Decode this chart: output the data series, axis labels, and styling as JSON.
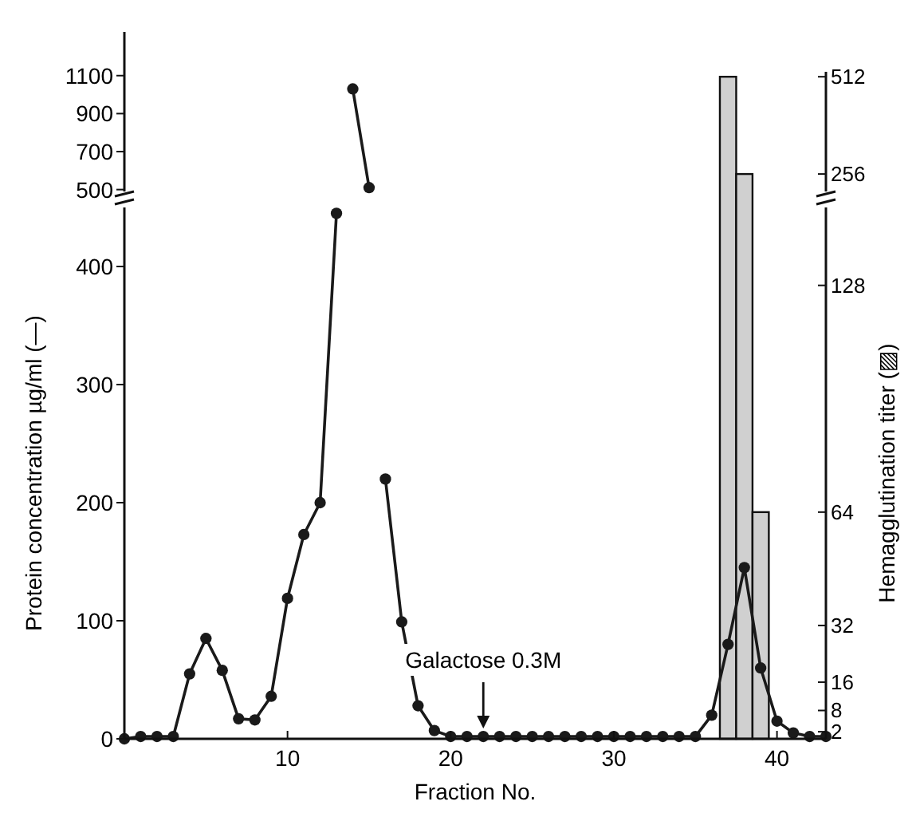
{
  "chart_data": [
    {
      "type": "line",
      "xlim": [
        0,
        43
      ],
      "ylim": [
        490,
        1120
      ],
      "yticks": [
        500,
        700,
        900,
        1100
      ],
      "y2lim": [
        210,
        525
      ],
      "y2ticks": [
        256,
        512
      ],
      "tick_labels": "y",
      "marker": "circle",
      "series": [
        {
          "type": "bar",
          "axis": "y2",
          "color": "#d0d0d0",
          "x": [
            37,
            38
          ],
          "values": [
            512,
            256
          ]
        },
        {
          "color": "#1a1a1a",
          "x": [
            14,
            15
          ],
          "values": [
            1030,
            510
          ]
        }
      ]
    },
    {
      "type": "line",
      "xlabel": "Fraction No.",
      "ylabel": "Protein concentration µg/ml (—)",
      "y2label": "Hemagglutination titer (▨)",
      "x": [
        0,
        1,
        2,
        3,
        4,
        5,
        6,
        7,
        8,
        9,
        10,
        11,
        12,
        13,
        14,
        15,
        16,
        17,
        18,
        19,
        20,
        21,
        22,
        23,
        24,
        25,
        26,
        27,
        28,
        29,
        30,
        31,
        32,
        33,
        34,
        35,
        36,
        37,
        38,
        39,
        40,
        41,
        42,
        43
      ],
      "xlim": [
        0,
        43
      ],
      "xticks": [
        10,
        20,
        30,
        40
      ],
      "ylim": [
        0,
        450
      ],
      "yticks": [
        0,
        100,
        200,
        300,
        400
      ],
      "y2lim": [
        0,
        150
      ],
      "y2ticks": [
        2,
        8,
        16,
        32,
        64,
        128
      ],
      "marker": "circle",
      "series": [
        {
          "type": "bar",
          "axis": "y2",
          "color": "#d0d0d0",
          "x": [
            39
          ],
          "values": [
            64
          ]
        },
        {
          "color": "#1a1a1a",
          "values": [
            0,
            2,
            2,
            2,
            55,
            85,
            58,
            17,
            16,
            36,
            119,
            173,
            200,
            445,
            null,
            null,
            220,
            99,
            28,
            7,
            2,
            2,
            2,
            2,
            2,
            2,
            2,
            2,
            2,
            2,
            2,
            2,
            2,
            2,
            2,
            2,
            20,
            80,
            145,
            60,
            15,
            5,
            2,
            2
          ]
        }
      ],
      "annotations": [
        {
          "text": "Galactose 0.3M",
          "x": 22,
          "y": 2
        }
      ]
    }
  ]
}
